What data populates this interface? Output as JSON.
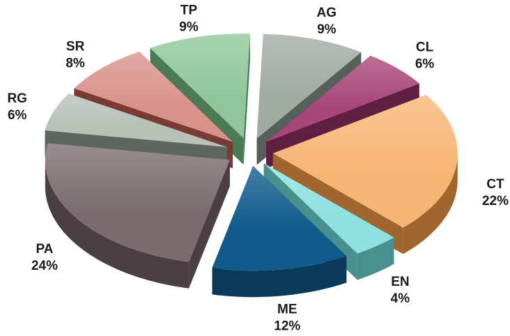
{
  "chart_data": {
    "type": "pie",
    "style": "3d-exploded",
    "start_angle_deg": 88,
    "direction": "clockwise",
    "legend": "none",
    "slices": [
      {
        "label": "AG",
        "value_label": "9%",
        "value": 9,
        "color": "#a0aba2",
        "side_color": "#57615a"
      },
      {
        "label": "CL",
        "value_label": "6%",
        "value": 6,
        "color": "#a8467a",
        "side_color": "#5e1f40"
      },
      {
        "label": "CT",
        "value_label": "22%",
        "value": 22,
        "color": "#f7b574",
        "side_color": "#a0662e"
      },
      {
        "label": "EN",
        "value_label": "4%",
        "value": 4,
        "color": "#8fe0e0",
        "side_color": "#4a8f8f"
      },
      {
        "label": "ME",
        "value_label": "12%",
        "value": 12,
        "color": "#0f5c8c",
        "side_color": "#093a59"
      },
      {
        "label": "PA",
        "value_label": "24%",
        "value": 24,
        "color": "#7a6c6f",
        "side_color": "#4a3f42"
      },
      {
        "label": "RG",
        "value_label": "6%",
        "value": 6,
        "color": "#b8c0b8",
        "side_color": "#5e6660"
      },
      {
        "label": "SR",
        "value_label": "8%",
        "value": 8,
        "color": "#d8928a",
        "side_color": "#7a3b35"
      },
      {
        "label": "TP",
        "value_label": "9%",
        "value": 9,
        "color": "#8fc79a",
        "side_color": "#4b7a55"
      }
    ]
  }
}
